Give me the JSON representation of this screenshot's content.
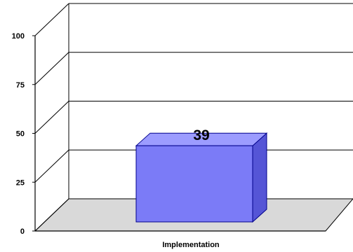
{
  "chart_data": {
    "type": "bar",
    "title": "",
    "xlabel": "",
    "ylabel": "",
    "categories": [
      "Implementation"
    ],
    "values": [
      39
    ],
    "data_labels": [
      "39"
    ],
    "yticks": [
      "0",
      "25",
      "50",
      "75",
      "100"
    ],
    "ylim": [
      0,
      100
    ],
    "grid": true,
    "legend": "none",
    "colors": {
      "bar_front": "#7b7bf7",
      "bar_top": "#9c9cff",
      "bar_side": "#5555d6",
      "bar_edge": "#00008b",
      "floor": "#d9d9d9"
    }
  }
}
